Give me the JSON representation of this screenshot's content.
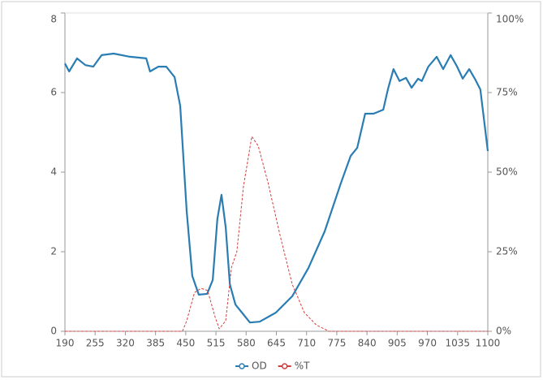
{
  "chart_data": {
    "type": "line",
    "xlim": [
      190,
      1100
    ],
    "xticks": [
      190,
      255,
      320,
      385,
      450,
      515,
      580,
      645,
      710,
      775,
      840,
      905,
      970,
      1035,
      1100
    ],
    "ylim": [
      0,
      8
    ],
    "yticks": [
      0,
      2,
      4,
      6,
      8
    ],
    "y2lim": [
      0,
      100
    ],
    "y2ticks": [
      {
        "value": 0,
        "label": "0%"
      },
      {
        "value": 25,
        "label": "25%"
      },
      {
        "value": 50,
        "label": "50%"
      },
      {
        "value": 75,
        "label": "75%"
      },
      {
        "value": 100,
        "label": "100%"
      }
    ],
    "legend": "bottom",
    "series": [
      {
        "name": "OD",
        "color": "#2a7db3",
        "x": [
          190,
          199,
          216,
          234,
          251,
          269,
          295,
          330,
          365,
          373,
          391,
          408,
          426,
          438,
          452,
          464,
          478,
          496,
          508,
          518,
          527,
          536,
          545,
          557,
          571,
          588,
          609,
          644,
          679,
          714,
          749,
          784,
          805,
          819,
          836,
          854,
          875,
          885,
          897,
          910,
          924,
          936,
          950,
          958,
          972,
          990,
          1004,
          1020,
          1034,
          1046,
          1060,
          1072,
          1084,
          1100
        ],
        "values": [
          6.73,
          6.53,
          6.86,
          6.69,
          6.65,
          6.94,
          6.98,
          6.9,
          6.86,
          6.53,
          6.65,
          6.65,
          6.39,
          5.67,
          3.02,
          1.39,
          0.92,
          0.94,
          1.29,
          2.82,
          3.43,
          2.61,
          1.18,
          0.67,
          0.47,
          0.22,
          0.24,
          0.47,
          0.88,
          1.59,
          2.51,
          3.73,
          4.41,
          4.61,
          5.47,
          5.47,
          5.57,
          6.08,
          6.59,
          6.29,
          6.37,
          6.12,
          6.35,
          6.29,
          6.65,
          6.9,
          6.59,
          6.94,
          6.65,
          6.35,
          6.59,
          6.35,
          6.08,
          4.53
        ]
      },
      {
        "name": "%T",
        "color": "#d43d3d",
        "axis": "y2",
        "x": [
          190,
          443,
          452,
          469,
          483,
          497,
          513,
          522,
          536,
          548,
          560,
          574,
          592,
          606,
          627,
          653,
          679,
          705,
          731,
          758,
          1100
        ],
        "values": [
          0,
          0,
          3.3,
          12.2,
          13.5,
          12.8,
          4.6,
          0.8,
          3.3,
          19.9,
          25,
          45.4,
          61.2,
          58.2,
          46.7,
          30.1,
          14.8,
          5.9,
          2,
          0,
          0
        ]
      }
    ]
  }
}
